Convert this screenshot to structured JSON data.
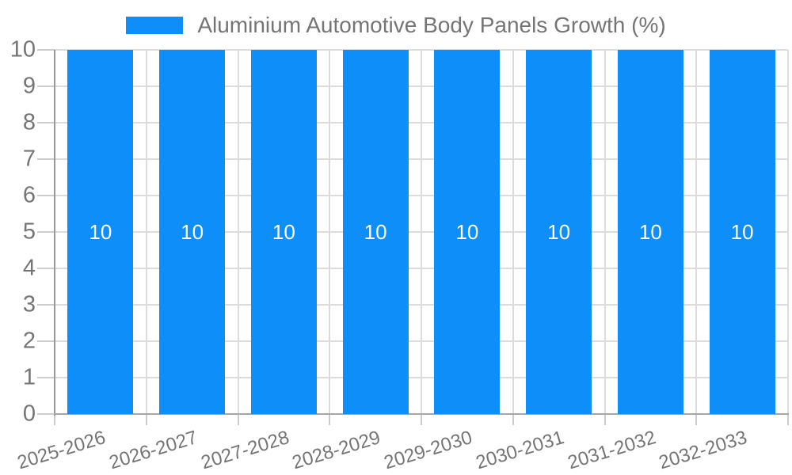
{
  "legend": {
    "label": "Aluminium Automotive Body Panels Growth (%)"
  },
  "chart_data": {
    "type": "bar",
    "title": "Aluminium Automotive Body Panels Growth (%)",
    "categories": [
      "2025-2026",
      "2026-2027",
      "2027-2028",
      "2028-2029",
      "2029-2030",
      "2030-2031",
      "2031-2032",
      "2032-2033"
    ],
    "values": [
      10,
      10,
      10,
      10,
      10,
      10,
      10,
      10
    ],
    "bar_labels": [
      "10",
      "10",
      "10",
      "10",
      "10",
      "10",
      "10",
      "10"
    ],
    "ylabel": "",
    "xlabel": "",
    "ylim": [
      0,
      10
    ],
    "yticks": [
      0,
      1,
      2,
      3,
      4,
      5,
      6,
      7,
      8,
      9,
      10
    ],
    "grid": true,
    "legend_position": "top",
    "x_label_rotation_deg": -17
  },
  "colors": {
    "bar": "#0d8ef9",
    "axis_text": "#757575",
    "bar_value_text": "#ffffff",
    "gridline": "#dcdcdc",
    "axis_line": "#999999",
    "background": "#ffffff"
  }
}
